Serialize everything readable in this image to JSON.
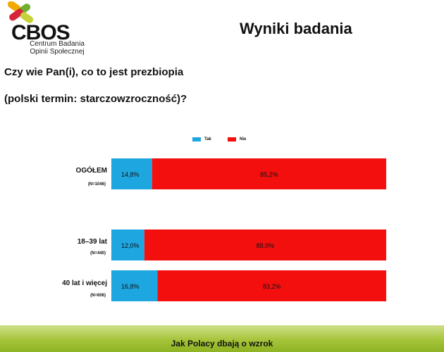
{
  "logo": {
    "name": "CBOS",
    "subtitle_line1": "Centrum Badania",
    "subtitle_line2": "Opinii Społecznej"
  },
  "title": "Wyniki badania",
  "question_line1": "Czy wie Pan(i), co to jest prezbiopia",
  "question_line2": "(polski termin: starczowzroczność)?",
  "footer": "Jak Polacy dbają o wzrok",
  "chart_data": {
    "type": "bar",
    "orientation": "horizontal",
    "stacked": true,
    "categories": [
      {
        "label": "OGÓŁEM",
        "n": "(N=1046)"
      },
      {
        "label": "18–39 lat",
        "n": "(N=440)"
      },
      {
        "label": "40 lat i więcej",
        "n": "(N=606)"
      }
    ],
    "series": [
      {
        "name": "Tak",
        "color": "#1ea6e0",
        "values": [
          14.8,
          12.0,
          16.8
        ],
        "labels": [
          "14,8%",
          "12,0%",
          "16,8%"
        ]
      },
      {
        "name": "Nie",
        "color": "#f40f0f",
        "values": [
          85.2,
          88.0,
          83.2
        ],
        "labels": [
          "85,2%",
          "88,0%",
          "83,2%"
        ]
      }
    ],
    "xlim": [
      0,
      100
    ],
    "legend": "top-center",
    "grid": false
  }
}
